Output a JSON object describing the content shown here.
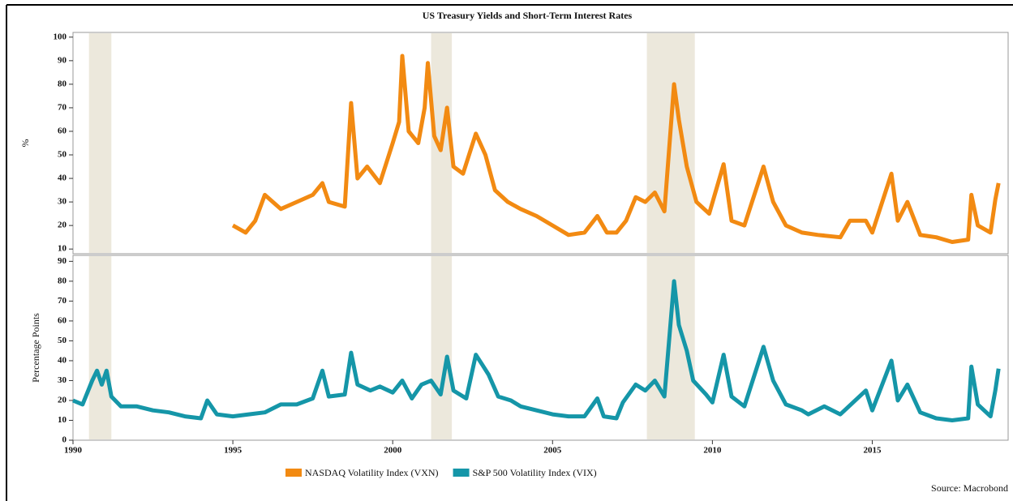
{
  "title": "US Treasury Yields and Short-Term Interest Rates",
  "source": "Source: Macrobond",
  "shaded_periods": [
    [
      1990.5,
      1991.2
    ],
    [
      2001.2,
      2001.85
    ],
    [
      2007.95,
      2009.45
    ]
  ],
  "chart_data": [
    {
      "type": "line",
      "ylabel": "%",
      "xlim": [
        1990,
        2019.25
      ],
      "ylim": [
        8,
        102
      ],
      "yticks": [
        10,
        20,
        30,
        40,
        50,
        60,
        70,
        80,
        90,
        100
      ],
      "x": [
        1995,
        1995.4,
        1995.7,
        1996,
        1996.5,
        1997,
        1997.5,
        1997.8,
        1998,
        1998.5,
        1998.7,
        1998.9,
        1999.2,
        1999.6,
        2000,
        2000.2,
        2000.3,
        2000.5,
        2000.8,
        2001.0,
        2001.1,
        2001.3,
        2001.5,
        2001.7,
        2001.9,
        2002.2,
        2002.6,
        2002.9,
        2003.2,
        2003.6,
        2004,
        2004.5,
        2005,
        2005.5,
        2006,
        2006.4,
        2006.7,
        2007,
        2007.3,
        2007.6,
        2007.9,
        2008.2,
        2008.5,
        2008.8,
        2008.95,
        2009.2,
        2009.5,
        2009.9,
        2010.35,
        2010.6,
        2011,
        2011.6,
        2011.9,
        2012.3,
        2012.8,
        2013.3,
        2014,
        2014.3,
        2014.8,
        2015,
        2015.6,
        2015.8,
        2016.1,
        2016.5,
        2017,
        2017.5,
        2018,
        2018.1,
        2018.3,
        2018.7,
        2018.85,
        2018.95
      ],
      "series": [
        {
          "name": "NASDAQ Volatility Index (VXN)",
          "color": "#f28a12",
          "values": [
            20,
            17,
            22,
            33,
            27,
            30,
            33,
            38,
            30,
            28,
            72,
            40,
            45,
            38,
            55,
            64,
            92,
            60,
            55,
            70,
            89,
            58,
            52,
            70,
            45,
            42,
            59,
            50,
            35,
            30,
            27,
            24,
            20,
            16,
            17,
            24,
            17,
            17,
            22,
            32,
            30,
            34,
            26,
            80,
            65,
            45,
            30,
            25,
            46,
            22,
            20,
            45,
            30,
            20,
            17,
            16,
            15,
            22,
            22,
            17,
            42,
            22,
            30,
            16,
            15,
            13,
            14,
            33,
            20,
            17,
            31,
            38
          ]
        }
      ]
    },
    {
      "type": "line",
      "ylabel": "Percentage Points",
      "xlim": [
        1990,
        2019.25
      ],
      "xticks": [
        1990,
        1995,
        2000,
        2005,
        2010,
        2015
      ],
      "ylim": [
        0,
        93
      ],
      "yticks": [
        0,
        10,
        20,
        30,
        40,
        50,
        60,
        70,
        80,
        90
      ],
      "x": [
        1990.0,
        1990.3,
        1990.6,
        1990.75,
        1990.9,
        1991.05,
        1991.2,
        1991.5,
        1992,
        1992.5,
        1993,
        1993.5,
        1994,
        1994.2,
        1994.5,
        1995,
        1995.5,
        1996,
        1996.5,
        1997,
        1997.5,
        1997.8,
        1998,
        1998.5,
        1998.7,
        1998.9,
        1999.3,
        1999.6,
        2000,
        2000.3,
        2000.6,
        2000.9,
        2001.2,
        2001.5,
        2001.7,
        2001.9,
        2002.3,
        2002.6,
        2002.8,
        2003,
        2003.3,
        2003.7,
        2004,
        2004.5,
        2005,
        2005.5,
        2006,
        2006.4,
        2006.6,
        2007,
        2007.2,
        2007.6,
        2007.9,
        2008.2,
        2008.5,
        2008.8,
        2008.95,
        2009.2,
        2009.4,
        2009.8,
        2010,
        2010.35,
        2010.6,
        2011,
        2011.6,
        2011.9,
        2012.3,
        2012.8,
        2013,
        2013.5,
        2014,
        2014.8,
        2015,
        2015.6,
        2015.8,
        2016.1,
        2016.5,
        2017,
        2017.5,
        2018,
        2018.1,
        2018.3,
        2018.7,
        2018.85,
        2018.95
      ],
      "series": [
        {
          "name": "S&P 500 Volatility Index (VIX)",
          "color": "#1596a8",
          "values": [
            20,
            18,
            30,
            35,
            28,
            35,
            22,
            17,
            17,
            15,
            14,
            12,
            11,
            20,
            13,
            12,
            13,
            14,
            18,
            18,
            21,
            35,
            22,
            23,
            44,
            28,
            25,
            27,
            24,
            30,
            21,
            28,
            30,
            23,
            42,
            25,
            21,
            43,
            38,
            33,
            22,
            20,
            17,
            15,
            13,
            12,
            12,
            21,
            12,
            11,
            19,
            28,
            25,
            30,
            22,
            80,
            58,
            45,
            30,
            23,
            19,
            43,
            22,
            17,
            47,
            30,
            18,
            15,
            13,
            17,
            13,
            25,
            15,
            40,
            20,
            28,
            14,
            11,
            10,
            11,
            37,
            18,
            12,
            25,
            36
          ]
        }
      ]
    }
  ]
}
